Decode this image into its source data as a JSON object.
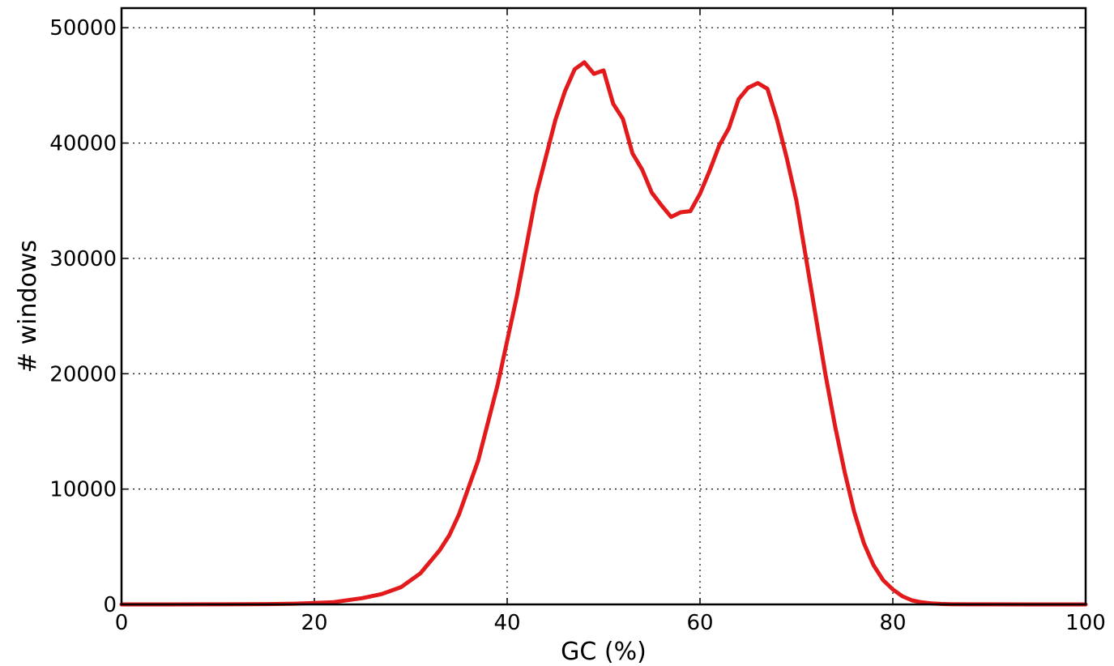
{
  "chart_data": {
    "type": "line",
    "title": "",
    "xlabel": "GC (%)",
    "ylabel": "# windows",
    "xlim": [
      0,
      100
    ],
    "ylim": [
      0,
      51700
    ],
    "grid": true,
    "grid_style": "dotted",
    "line_color": "#e31a1c",
    "xticks": [
      0,
      20,
      40,
      60,
      80,
      100
    ],
    "yticks": [
      0,
      10000,
      20000,
      30000,
      40000,
      50000
    ],
    "series": [
      {
        "x": [
          0,
          5,
          10,
          15,
          18,
          20,
          22,
          25,
          27,
          29,
          31,
          33,
          34,
          35,
          37,
          39,
          41,
          43,
          45,
          46,
          47,
          48,
          49,
          50,
          51,
          52,
          53,
          54,
          55,
          56,
          57,
          58,
          59,
          60,
          61,
          62,
          63,
          64,
          65,
          66,
          67,
          68,
          69,
          70,
          71,
          72,
          73,
          74,
          75,
          76,
          77,
          78,
          79,
          80,
          81,
          82,
          83,
          84,
          85,
          86,
          88,
          90,
          95,
          100
        ],
        "y": [
          0,
          0,
          10,
          30,
          60,
          120,
          200,
          550,
          900,
          1500,
          2700,
          4700,
          6000,
          7800,
          12500,
          19000,
          26700,
          35500,
          42000,
          44500,
          46400,
          47000,
          46000,
          46300,
          43400,
          42100,
          39100,
          37700,
          35700,
          34600,
          33600,
          34000,
          34100,
          35600,
          37600,
          39800,
          41300,
          43800,
          44800,
          45200,
          44700,
          42000,
          38700,
          35000,
          30000,
          25000,
          20000,
          15500,
          11500,
          8000,
          5300,
          3400,
          2100,
          1300,
          700,
          350,
          180,
          90,
          40,
          20,
          10,
          5,
          0,
          0
        ]
      }
    ]
  }
}
